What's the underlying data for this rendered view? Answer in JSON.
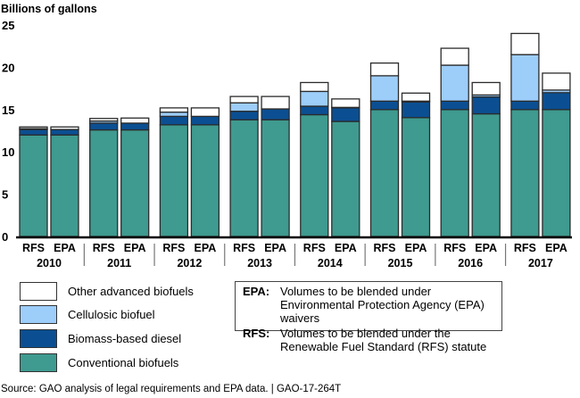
{
  "chart_data": {
    "type": "bar",
    "stacked": true,
    "title": "",
    "ylabel": "Billions of gallons",
    "xlabel": "",
    "ylim": [
      0,
      25
    ],
    "yticks": [
      0,
      5,
      10,
      15,
      20,
      25
    ],
    "grid": false,
    "groups": [
      "2010",
      "2011",
      "2012",
      "2013",
      "2014",
      "2015",
      "2016",
      "2017"
    ],
    "bar_labels": [
      "RFS",
      "EPA"
    ],
    "categories": [
      "2010 RFS",
      "2010 EPA",
      "2011 RFS",
      "2011 EPA",
      "2012 RFS",
      "2012 EPA",
      "2013 RFS",
      "2013 EPA",
      "2014 RFS",
      "2014 EPA",
      "2015 RFS",
      "2015 EPA",
      "2016 RFS",
      "2016 EPA",
      "2017 RFS",
      "2017 EPA"
    ],
    "series": [
      {
        "name": "Conventional biofuels",
        "color": "#3f9a8f",
        "values": [
          12.0,
          12.0,
          12.6,
          12.6,
          13.2,
          13.2,
          13.8,
          13.8,
          14.4,
          13.6,
          15.0,
          14.05,
          15.0,
          14.5,
          15.0,
          15.0
        ]
      },
      {
        "name": "Biomass-based diesel",
        "color": "#0b4f92",
        "values": [
          0.65,
          0.65,
          0.8,
          0.8,
          1.0,
          1.0,
          1.0,
          1.28,
          1.0,
          1.63,
          1.0,
          1.85,
          1.0,
          2.0,
          1.0,
          2.0
        ]
      },
      {
        "name": "Cellulosic biofuel",
        "color": "#9dcdf9",
        "values": [
          0.1,
          0.0,
          0.25,
          0.0,
          0.5,
          0.0,
          1.0,
          0.0,
          1.75,
          0.03,
          3.0,
          0.1,
          4.25,
          0.23,
          5.5,
          0.31
        ]
      },
      {
        "name": "Other advanced biofuels",
        "color": "#ffffff",
        "values": [
          0.2,
          0.3,
          0.3,
          0.6,
          0.5,
          1.0,
          0.75,
          1.47,
          1.05,
          1.0,
          1.5,
          0.95,
          2.0,
          1.47,
          2.5,
          2.0
        ]
      }
    ],
    "legend_position": "bottom-left"
  },
  "legend": {
    "items": [
      {
        "label": "Other advanced biofuels",
        "color": "#ffffff"
      },
      {
        "label": "Cellulosic biofuel",
        "color": "#9dcdf9"
      },
      {
        "label": "Biomass-based diesel",
        "color": "#0b4f92"
      },
      {
        "label": "Conventional biofuels",
        "color": "#3f9a8f"
      }
    ]
  },
  "notes": [
    {
      "key": "EPA:",
      "text": "Volumes to be blended under Environmental Protection Agency (EPA) waivers"
    },
    {
      "key": "RFS:",
      "text": "Volumes to be blended under the Renewable Fuel Standard (RFS) statute"
    }
  ],
  "source": "Source: GAO analysis of legal requirements and EPA data.  |  GAO-17-264T"
}
